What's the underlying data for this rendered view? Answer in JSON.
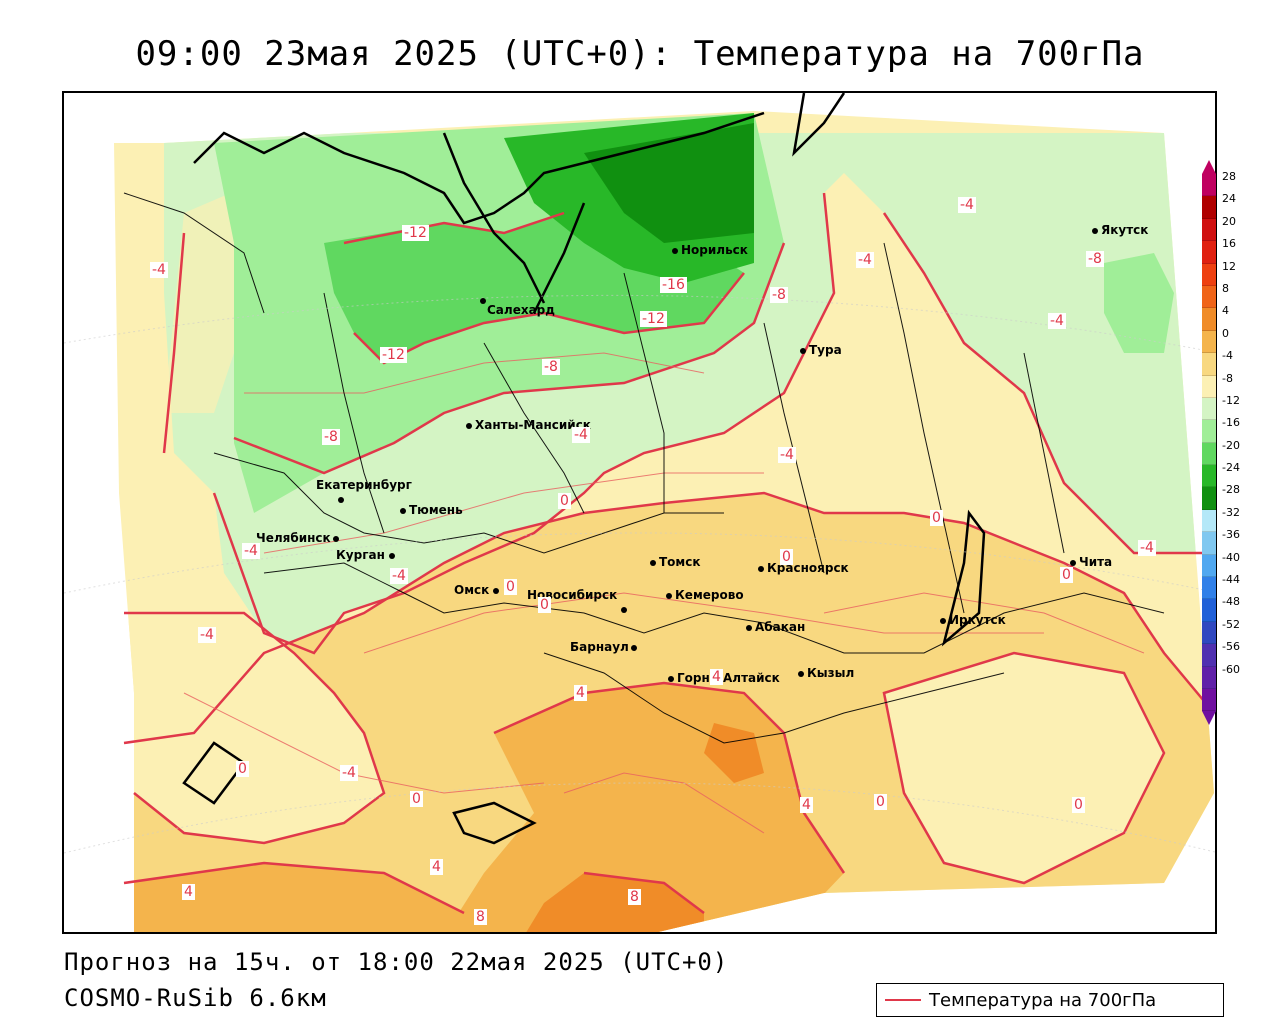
{
  "title": "09:00 23мая 2025 (UTC+0): Температура на 700гПа",
  "footer": {
    "forecast": "Прогноз на 15ч. от 18:00 22мая 2025 (UTC+0)",
    "model": "COSMO-RuSib 6.6км"
  },
  "legend": {
    "label": "Температура на 700гПа",
    "line_color": "#e0384a"
  },
  "colorbar": {
    "labels": [
      "28",
      "24",
      "20",
      "16",
      "12",
      "8",
      "4",
      "0",
      "-4",
      "-8",
      "-12",
      "-16",
      "-20",
      "-24",
      "-28",
      "-32",
      "-36",
      "-40",
      "-44",
      "-48",
      "-52",
      "-56",
      "-60"
    ],
    "colors": [
      "#c00060",
      "#b00000",
      "#d01010",
      "#e02010",
      "#ee4010",
      "#f06418",
      "#f08c28",
      "#f4b44c",
      "#f8d880",
      "#fcf0b4",
      "#d4f4c4",
      "#a0ee98",
      "#60d860",
      "#28b828",
      "#109010",
      "#b4e8f8",
      "#80c8f0",
      "#50a8f0",
      "#3080e8",
      "#2060d8",
      "#3048c0",
      "#5030b0",
      "#6020a8",
      "#7010a0"
    ]
  },
  "cities": [
    {
      "name": "Норильск"
    },
    {
      "name": "Салехард"
    },
    {
      "name": "Тура"
    },
    {
      "name": "Якутск"
    },
    {
      "name": "Ханты-Мансийск"
    },
    {
      "name": "Екатеринбург"
    },
    {
      "name": "Тюмень"
    },
    {
      "name": "Челябинск"
    },
    {
      "name": "Курган"
    },
    {
      "name": "Омск"
    },
    {
      "name": "Новосибирск"
    },
    {
      "name": "Томск"
    },
    {
      "name": "Кемерово"
    },
    {
      "name": "Красноярск"
    },
    {
      "name": "Абакан"
    },
    {
      "name": "Барнаул"
    },
    {
      "name": "Горно-Алтайск"
    },
    {
      "name": "Кызыл"
    },
    {
      "name": "Иркутск"
    },
    {
      "name": "Чита"
    }
  ],
  "isotherm_labels": [
    "-12",
    "-16",
    "-12",
    "-8",
    "-12",
    "-8",
    "-4",
    "-4",
    "-4",
    "-4",
    "-8",
    "-4",
    "-8",
    "-4",
    "-4",
    "0",
    "0",
    "0",
    "-4",
    "-4",
    "-4",
    "-4",
    "0",
    "0",
    "4",
    "4",
    "0",
    "0",
    "0",
    "4",
    "8",
    "8",
    "4",
    "4",
    "0",
    "0"
  ]
}
